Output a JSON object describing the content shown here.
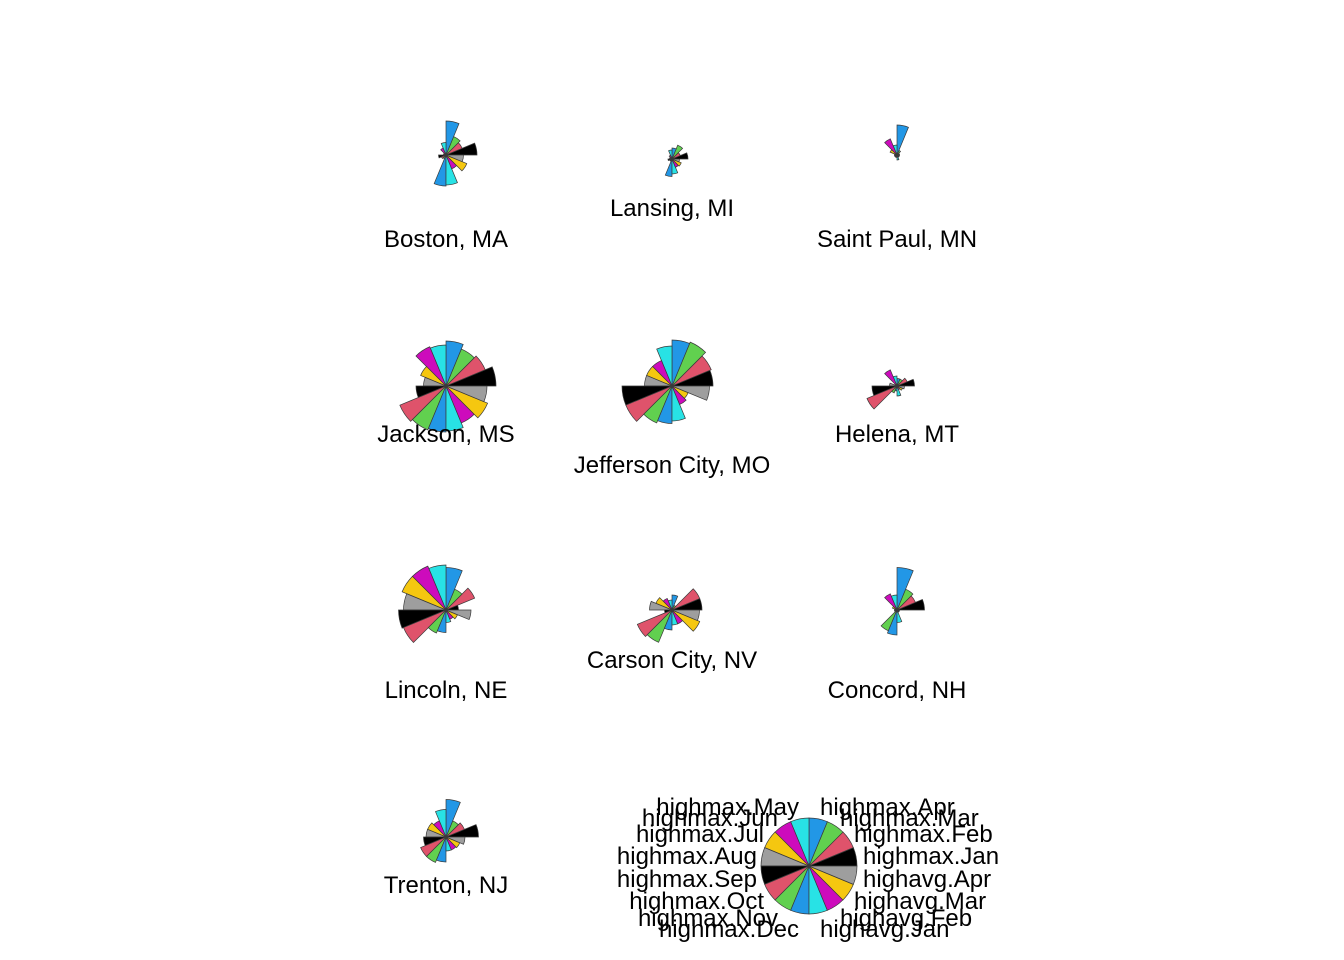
{
  "chart_data": {
    "type": "star-segments",
    "palette": [
      "#000000",
      "#DF536B",
      "#61D04F",
      "#2297E6",
      "#28E2E5",
      "#CD0BBC",
      "#F5C710",
      "#9E9E9E"
    ],
    "variables": [
      "highmax.Jan",
      "highmax.Feb",
      "highmax.Mar",
      "highmax.Apr",
      "highmax.May",
      "highmax.Jun",
      "highmax.Jul",
      "highmax.Aug",
      "highmax.Sep",
      "highmax.Oct",
      "highmax.Nov",
      "highmax.Dec",
      "highavg.Jan",
      "highavg.Feb",
      "highavg.Mar",
      "highavg.Apr"
    ],
    "stars": [
      {
        "label": "Boston, MA",
        "values": [
          0.62,
          0.35,
          0.4,
          0.68,
          0.25,
          0.15,
          0.05,
          0.05,
          0.15,
          0.1,
          0.08,
          0.62,
          0.6,
          0.3,
          0.45,
          0.35
        ]
      },
      {
        "label": "Lansing, MI",
        "values": [
          0.32,
          0.18,
          0.3,
          0.22,
          0.18,
          0.08,
          0.05,
          0.05,
          0.08,
          0.05,
          0.05,
          0.35,
          0.3,
          0.18,
          0.2,
          0.15
        ]
      },
      {
        "label": "Saint Paul, MN",
        "values": [
          0.05,
          0.05,
          0.1,
          0.6,
          0.2,
          0.35,
          0.15,
          0.05,
          0.05,
          0.05,
          0.05,
          0.05,
          0.1,
          0.05,
          0.05,
          0.05
        ]
      },
      {
        "label": "Jackson, MS",
        "values": [
          1.0,
          0.85,
          0.8,
          0.9,
          0.82,
          0.85,
          0.55,
          0.45,
          0.6,
          1.0,
          0.95,
          0.92,
          0.9,
          0.8,
          0.9,
          0.82
        ]
      },
      {
        "label": "Jefferson City, MO",
        "values": [
          0.82,
          0.85,
          0.95,
          0.92,
          0.8,
          0.55,
          0.55,
          0.55,
          1.0,
          1.0,
          0.8,
          0.75,
          0.7,
          0.4,
          0.35,
          0.75
        ]
      },
      {
        "label": "Helena, MT",
        "values": [
          0.35,
          0.22,
          0.15,
          0.15,
          0.2,
          0.35,
          0.05,
          0.15,
          0.5,
          0.65,
          0.15,
          0.1,
          0.2,
          0.08,
          0.12,
          0.15
        ]
      },
      {
        "label": "Lincoln, NE",
        "values": [
          0.25,
          0.62,
          0.45,
          0.85,
          0.9,
          0.95,
          0.95,
          0.85,
          0.95,
          0.92,
          0.5,
          0.45,
          0.25,
          0.2,
          0.25,
          0.5
        ]
      },
      {
        "label": "Carson City, NV",
        "values": [
          0.6,
          0.6,
          0.1,
          0.3,
          0.2,
          0.25,
          0.35,
          0.45,
          0.15,
          0.75,
          0.7,
          0.4,
          0.3,
          0.3,
          0.6,
          0.55
        ]
      },
      {
        "label": "Concord, NH",
        "values": [
          0.55,
          0.4,
          0.45,
          0.85,
          0.3,
          0.35,
          0.1,
          0.05,
          0.05,
          0.05,
          0.45,
          0.5,
          0.25,
          0.05,
          0.05,
          0.05
        ]
      },
      {
        "label": "Trenton, NJ",
        "values": [
          0.65,
          0.4,
          0.35,
          0.75,
          0.55,
          0.35,
          0.4,
          0.4,
          0.45,
          0.55,
          0.55,
          0.5,
          0.28,
          0.28,
          0.3,
          0.38
        ]
      }
    ],
    "key": {
      "values": [
        1,
        1,
        1,
        1,
        1,
        1,
        1,
        1,
        1,
        1,
        1,
        1,
        1,
        1,
        1,
        1
      ]
    }
  }
}
